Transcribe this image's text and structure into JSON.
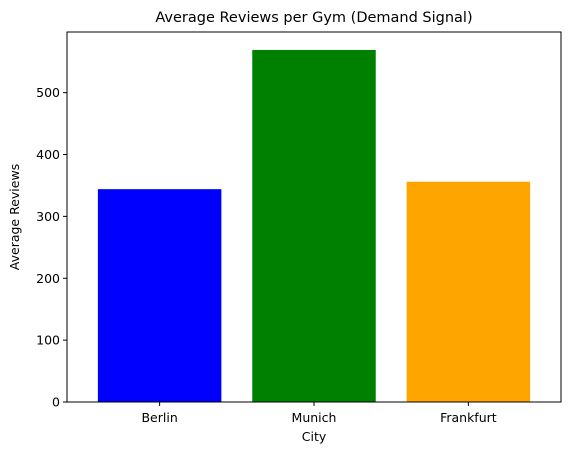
{
  "chart_data": {
    "type": "bar",
    "title": "Average Reviews per Gym (Demand Signal)",
    "xlabel": "City",
    "ylabel": "Average Reviews",
    "categories": [
      "Berlin",
      "Munich",
      "Frankfurt"
    ],
    "values": [
      344,
      569,
      356
    ],
    "colors": [
      "#0000ff",
      "#008000",
      "#ffa500"
    ],
    "ylim": [
      0,
      598
    ],
    "yticks": [
      0,
      100,
      200,
      300,
      400,
      500
    ],
    "grid": false,
    "legend": "none"
  }
}
